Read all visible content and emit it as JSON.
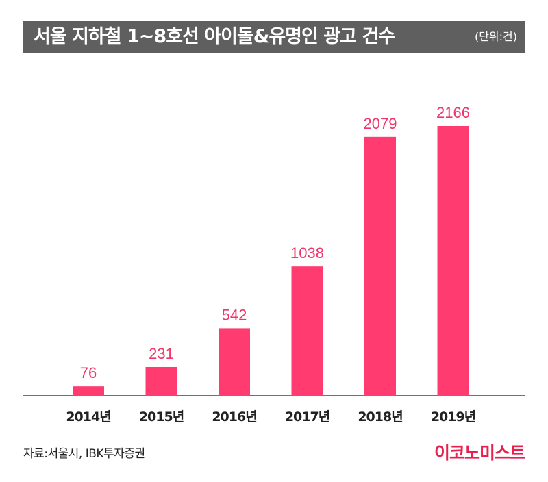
{
  "header": {
    "title": "서울 지하철 1~8호선 아이돌&유명인 광고 건수",
    "unit": "(단위:건)"
  },
  "footer": {
    "source": "자료:서울시, IBK투자증권",
    "brand": "이코노미스트"
  },
  "colors": {
    "bar": "#ff3b70",
    "label": "#f0356a",
    "title_bg": "#5f5f5f",
    "brand": "#e8204f"
  },
  "chart_data": {
    "type": "bar",
    "categories": [
      "2014년",
      "2015년",
      "2016년",
      "2017년",
      "2018년",
      "2019년"
    ],
    "values": [
      76,
      231,
      542,
      1038,
      2079,
      2166
    ],
    "title": "서울 지하철 1~8호선 아이돌&유명인 광고 건수",
    "xlabel": "",
    "ylabel": "",
    "ylim": [
      0,
      2166
    ],
    "grid": false,
    "legend": "none"
  }
}
